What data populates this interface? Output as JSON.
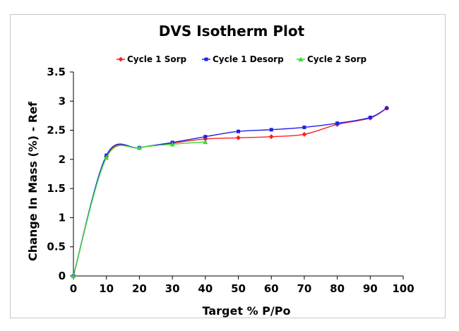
{
  "chart_data": {
    "type": "line",
    "title": "DVS Isotherm Plot",
    "xlabel": "Target % P/Po",
    "ylabel": "Change In Mass (%) - Ref",
    "xlim": [
      0,
      100
    ],
    "ylim": [
      0,
      3.5
    ],
    "x_ticks": [
      "0",
      "10",
      "20",
      "30",
      "40",
      "50",
      "60",
      "70",
      "80",
      "90",
      "100"
    ],
    "y_ticks": [
      "0",
      "0.5",
      "1",
      "1.5",
      "2",
      "2.5",
      "3",
      "3.5"
    ],
    "grid": false,
    "legend_position": "top",
    "series": [
      {
        "name": "Cycle 1 Sorp",
        "color": "#ff2020",
        "marker": "diamond",
        "x": [
          0,
          10,
          20,
          30,
          40,
          50,
          60,
          70,
          80,
          90,
          95
        ],
        "y": [
          0,
          2.05,
          2.2,
          2.28,
          2.35,
          2.37,
          2.39,
          2.43,
          2.6,
          2.71,
          2.88
        ]
      },
      {
        "name": "Cycle 1 Desorp",
        "color": "#2020e8",
        "marker": "square",
        "x": [
          95,
          90,
          80,
          70,
          60,
          50,
          40,
          30,
          20,
          10,
          0
        ],
        "y": [
          2.88,
          2.72,
          2.62,
          2.55,
          2.51,
          2.48,
          2.39,
          2.29,
          2.2,
          2.07,
          0
        ]
      },
      {
        "name": "Cycle 2 Sorp",
        "color": "#33dd33",
        "marker": "triangle",
        "x": [
          0,
          10,
          20,
          30,
          40
        ],
        "y": [
          0,
          2.03,
          2.2,
          2.26,
          2.3
        ]
      }
    ]
  }
}
